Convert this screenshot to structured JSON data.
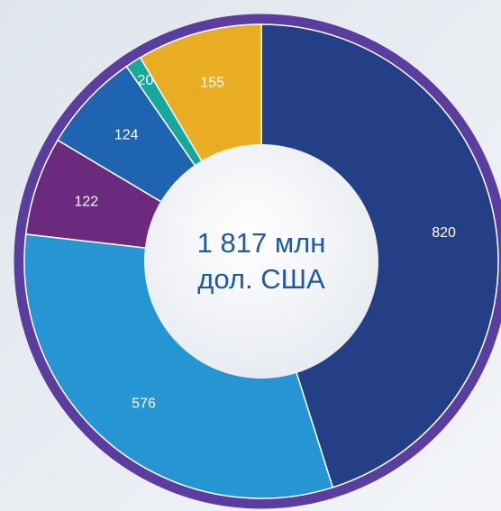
{
  "chart_data": {
    "type": "donut",
    "categories": [
      null,
      null,
      null,
      null,
      null,
      null
    ],
    "values": [
      820,
      576,
      122,
      124,
      20,
      155
    ],
    "colors": [
      "#253f87",
      "#2595d4",
      "#6b2a7e",
      "#1f64b0",
      "#1aa79b",
      "#e9ad23"
    ],
    "center_text": [
      "1 817 млн",
      "дол. США"
    ]
  }
}
